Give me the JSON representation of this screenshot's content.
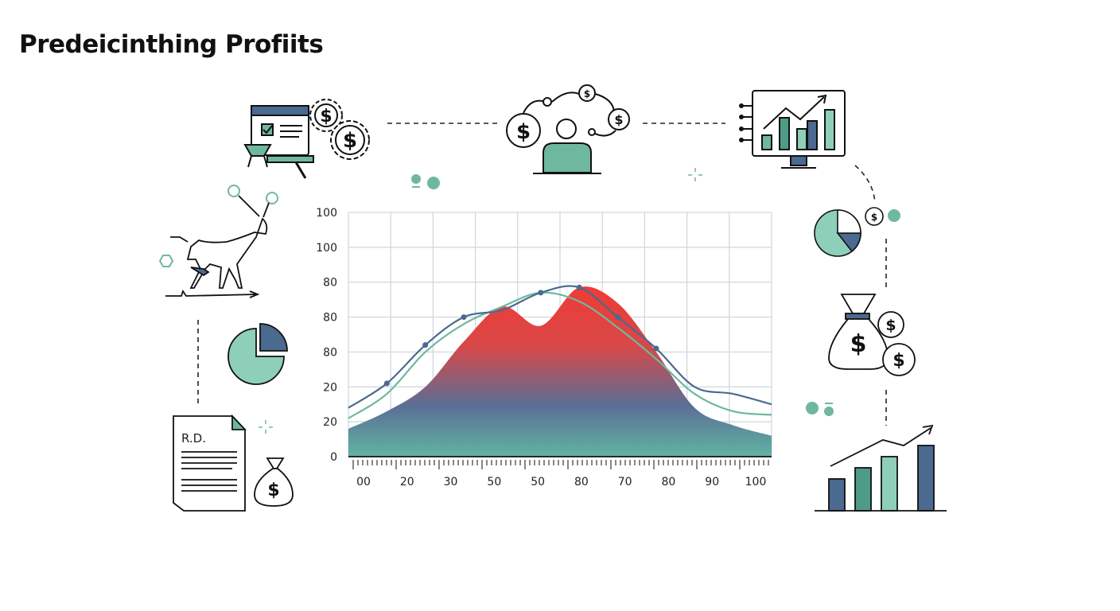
{
  "title": "Predeicinthing Profiits",
  "document_label": "R.D.",
  "currency_symbol": "$",
  "colors": {
    "teal": "#6fb8a0",
    "navy": "#4a6a8f",
    "light_teal": "#8ecfb9",
    "red": "#ee3f3a",
    "line": "#1a1a1a",
    "grid": "#cfd6dc"
  },
  "icons": [
    "dashboard-gears-icon",
    "network-person-icon",
    "monitor-chart-icon",
    "bull-icon",
    "pie-chart-icon",
    "document-icon",
    "money-bag-icon",
    "growth-bar-chart-icon"
  ],
  "chart_data": {
    "type": "area",
    "x_tick_labels": [
      "00",
      "20",
      "30",
      "50",
      "50",
      "80",
      "70",
      "80",
      "90",
      "100"
    ],
    "y_tick_labels": [
      "0",
      "20",
      "20",
      "80",
      "80",
      "80",
      "100",
      "100"
    ],
    "grid": true,
    "series": [
      {
        "style": "line-with-markers",
        "color": "#4a6a8f",
        "marker_x_index": [
          1,
          2,
          3,
          5,
          6,
          7,
          8
        ],
        "values": [
          14,
          21,
          32,
          40,
          42,
          47,
          48.5,
          40,
          31,
          20,
          18,
          15
        ]
      },
      {
        "style": "line",
        "color": "#6fb8a0",
        "values": [
          11,
          18,
          30,
          38,
          43,
          47,
          44.5,
          37,
          28,
          18,
          13,
          12
        ]
      },
      {
        "style": "gradient-area",
        "color": "#ee3f3a",
        "values": [
          8,
          13,
          20,
          33,
          43,
          37.5,
          48.5,
          44,
          30,
          14,
          9,
          6
        ]
      }
    ]
  }
}
